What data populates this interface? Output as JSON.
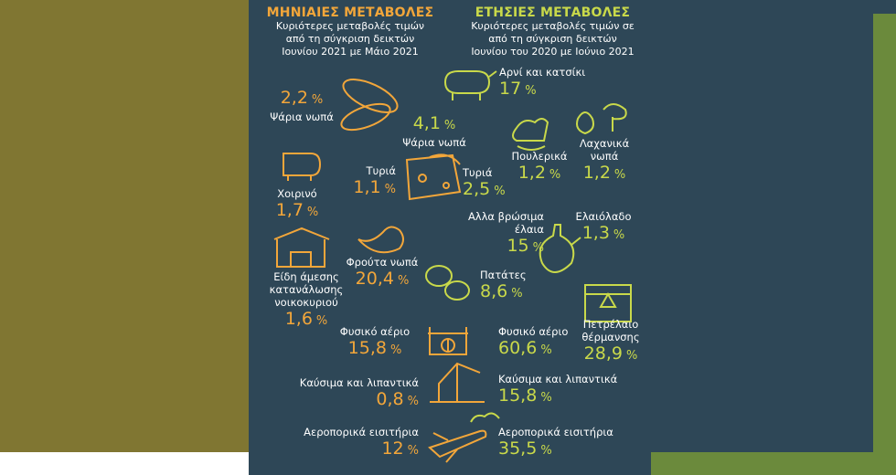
{
  "monthly": {
    "title": "ΜΗΝΙΑΙΕΣ ΜΕΤΑΒΟΛΕΣ",
    "subtitle": [
      "Κυριότερες μεταβολές τιμών",
      "από τη σύγκριση δεικτών",
      "Ιουνίου 2021 με Μάιο 2021"
    ],
    "items": [
      {
        "label": "Ψάρια νωπά",
        "value": "2,2",
        "unit": "%"
      },
      {
        "label": "Τυριά",
        "value": "1,1",
        "unit": "%"
      },
      {
        "label": "Χοιρινό",
        "value": "1,7",
        "unit": "%"
      },
      {
        "label": "Φρούτα νωπά",
        "value": "20,4",
        "unit": "%"
      },
      {
        "label": "Είδη άμεσης κατανάλωσης νοικοκυριού",
        "value": "1,6",
        "unit": "%"
      },
      {
        "label": "Φυσικό αέριο",
        "value": "15,8",
        "unit": "%"
      },
      {
        "label": "Καύσιμα και λιπαντικά",
        "value": "0,8",
        "unit": "%"
      },
      {
        "label": "Αεροπορικά εισιτήρια",
        "value": "12",
        "unit": "%"
      }
    ]
  },
  "annual": {
    "title": "ΕΤΗΣΙΕΣ ΜΕΤΑΒΟΛΕΣ",
    "subtitle": [
      "Κυριότερες μεταβολές τιμών σε",
      "από τη σύγκριση δεικτών",
      "Ιουνίου του 2020 με Ιούνιο 2021"
    ],
    "items": [
      {
        "label": "Αρνί και κατσίκι",
        "value": "17",
        "unit": "%"
      },
      {
        "label": "Ψάρια νωπά",
        "value": "4,1",
        "unit": "%"
      },
      {
        "label": "Πουλερικά",
        "value": "1,2",
        "unit": "%"
      },
      {
        "label": "Λαχανικά νωπά",
        "value": "1,2",
        "unit": "%"
      },
      {
        "label": "Τυριά",
        "value": "2,5",
        "unit": "%"
      },
      {
        "label": "Αλλα βρώσιμα έλαια",
        "value": "15",
        "unit": "%"
      },
      {
        "label": "Ελαιόλαδο",
        "value": "1,3",
        "unit": "%"
      },
      {
        "label": "Πατάτες",
        "value": "8,6",
        "unit": "%"
      },
      {
        "label": "Φυσικό αέριο",
        "value": "60,6",
        "unit": "%"
      },
      {
        "label": "Πετρέλαιο θέρμανσης",
        "value": "28,9",
        "unit": "%"
      },
      {
        "label": "Καύσιμα και λιπαντικά",
        "value": "15,8",
        "unit": "%"
      },
      {
        "label": "Αεροπορικά εισιτήρια",
        "value": "35,5",
        "unit": "%"
      }
    ]
  }
}
